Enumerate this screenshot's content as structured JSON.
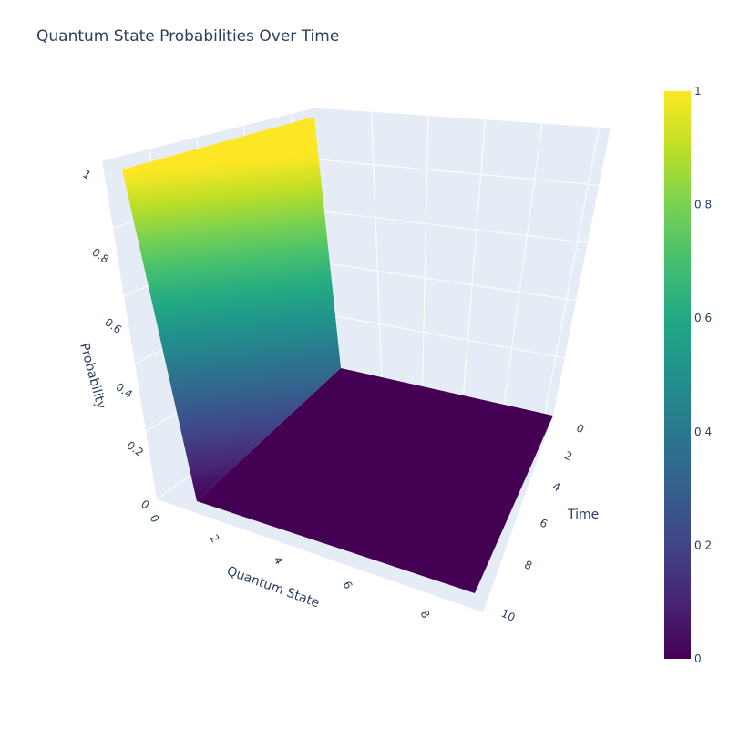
{
  "chart_data": {
    "type": "surface",
    "title": "Quantum State Probabilities Over Time",
    "xlabel": "Quantum State",
    "ylabel": "Time",
    "zlabel": "Probability",
    "x_ticks": [
      "0",
      "2",
      "4",
      "6",
      "8"
    ],
    "y_ticks": [
      "0",
      "2",
      "4",
      "6",
      "8",
      "10"
    ],
    "z_ticks": [
      "0",
      "0.2",
      "0.4",
      "0.6",
      "0.8",
      "1"
    ],
    "xlim": [
      0,
      9
    ],
    "ylim": [
      0,
      10
    ],
    "zlim": [
      0,
      1
    ],
    "surface": {
      "description_values": {
        "x": [
          0,
          1,
          9
        ],
        "z_at_t0": [
          1,
          0,
          0
        ],
        "z_other": 0
      }
    },
    "colorscale": "viridis",
    "colorbar": {
      "ticks": [
        "0",
        "0.2",
        "0.4",
        "0.6",
        "0.8",
        "1"
      ],
      "range": [
        0,
        1
      ]
    },
    "colors": {
      "background": "#e5ecf6",
      "grid": "#ffffff",
      "text": "#2a3f5f",
      "viridis_low": "#440154",
      "viridis_mid": "#21918c",
      "viridis_high": "#fde725"
    }
  }
}
